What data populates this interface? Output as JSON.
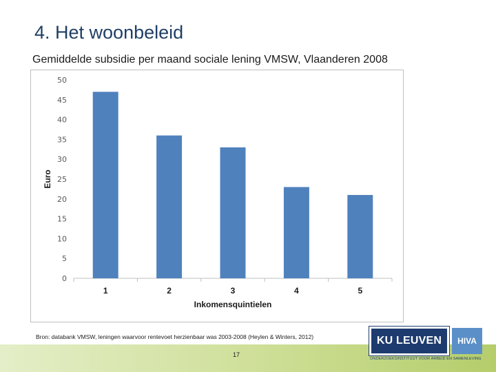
{
  "slide": {
    "title": "4. Het woonbeleid",
    "subtitle": "Gemiddelde subsidie per maand sociale lening VMSW, Vlaanderen 2008",
    "source": "Bron: databank VMSW, leningen waarvoor rentevoet herzienbaar was 2003-2008 (Heylen & Winters, 2012)",
    "page_number": "17",
    "logos": {
      "ku_leuven": "KU LEUVEN",
      "hiva": "HIVA",
      "tagline": "ONDERZOEKSINSTITUUT VOOR ARBEID EN SAMENLEVING"
    }
  },
  "colors": {
    "bar": "#4f81bd",
    "title": "#1f3f66"
  },
  "chart_data": {
    "type": "bar",
    "categories": [
      "1",
      "2",
      "3",
      "4",
      "5"
    ],
    "values": [
      47,
      36,
      33,
      23,
      21
    ],
    "title": "",
    "xlabel": "Inkomensquintielen",
    "ylabel": "Euro",
    "ylim": [
      0,
      50
    ],
    "yticks": [
      "0",
      "5",
      "10",
      "15",
      "20",
      "25",
      "30",
      "35",
      "40",
      "45",
      "50"
    ],
    "grid": false,
    "legend": "none"
  }
}
